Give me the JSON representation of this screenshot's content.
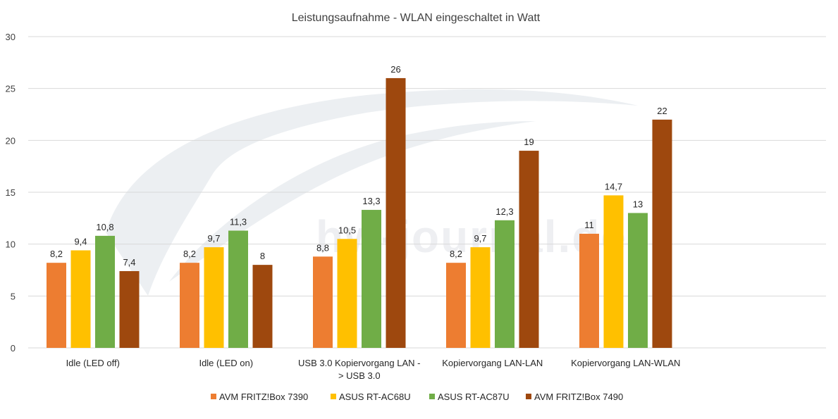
{
  "chart_data": {
    "type": "bar",
    "title": "Leistungsaufnahme - WLAN eingeschaltet in Watt",
    "watermark": "hw-journal.de",
    "categories": [
      [
        "Idle (LED off)"
      ],
      [
        "Idle (LED on)"
      ],
      [
        "USB 3.0 Kopiervorgang LAN -",
        "> USB 3.0"
      ],
      [
        "Kopiervorgang LAN-LAN"
      ],
      [
        "Kopiervorgang LAN-WLAN"
      ]
    ],
    "ylim": [
      0,
      30
    ],
    "yticks": [
      "0",
      "5",
      "10",
      "15",
      "20",
      "25",
      "30"
    ],
    "grid": true,
    "legend_position": "bottom",
    "series": [
      {
        "name": "AVM FRITZ!Box 7390",
        "color": "#ed7d31",
        "values": [
          8.2,
          8.2,
          8.8,
          8.2,
          11
        ],
        "labels": [
          "8,2",
          "8,2",
          "8,8",
          "8,2",
          "11"
        ]
      },
      {
        "name": "ASUS RT-AC68U",
        "color": "#ffc000",
        "values": [
          9.4,
          9.7,
          10.5,
          9.7,
          14.7
        ],
        "labels": [
          "9,4",
          "9,7",
          "10,5",
          "9,7",
          "14,7"
        ]
      },
      {
        "name": "ASUS RT-AC87U",
        "color": "#70ad47",
        "values": [
          10.8,
          11.3,
          13.3,
          12.3,
          13
        ],
        "labels": [
          "10,8",
          "11,3",
          "13,3",
          "12,3",
          "13"
        ]
      },
      {
        "name": "AVM FRITZ!Box 7490",
        "color": "#9e480e",
        "values": [
          7.4,
          8,
          26,
          19,
          22
        ],
        "labels": [
          "7,4",
          "8",
          "26",
          "19",
          "22"
        ]
      }
    ]
  }
}
